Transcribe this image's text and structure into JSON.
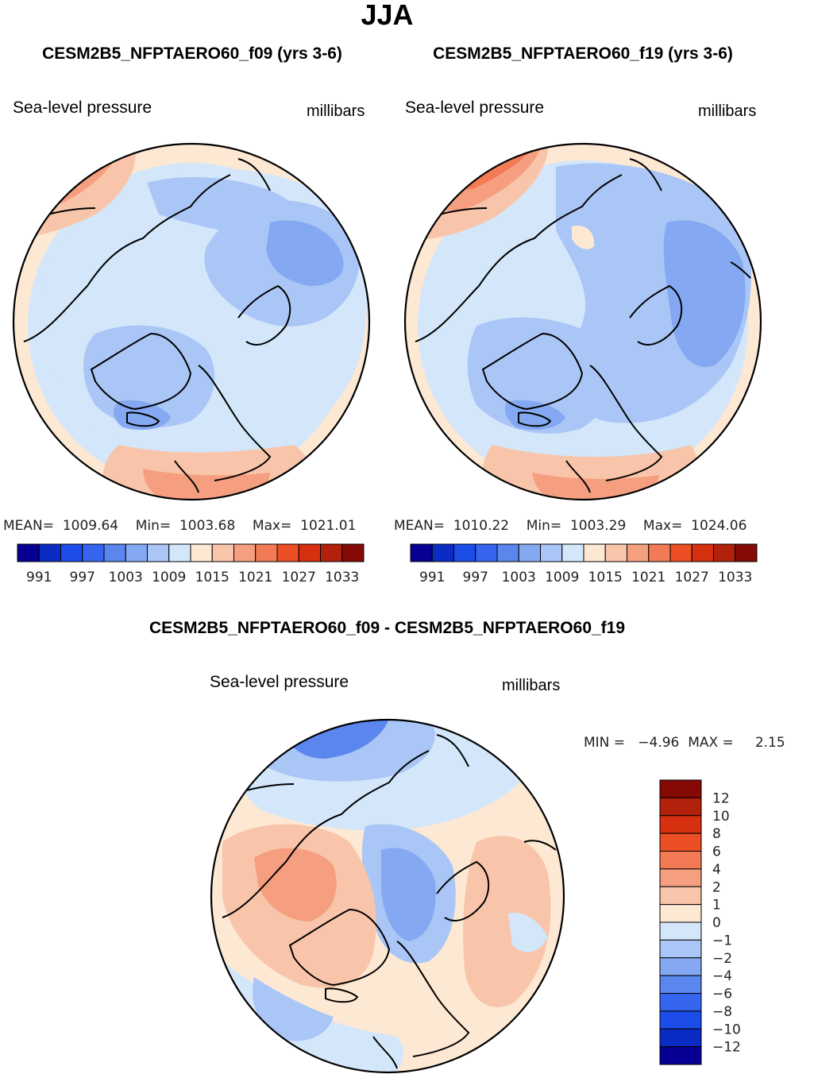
{
  "page_title": "JJA",
  "colors": {
    "ramp_abs": [
      "#080094",
      "#0b2cc4",
      "#1c4de8",
      "#3666f0",
      "#5a86ee",
      "#84a9f2",
      "#aac6f6",
      "#d3e6fa",
      "#fde8d3",
      "#f9c5aa",
      "#f59f80",
      "#f27a54",
      "#ec4f26",
      "#d63010",
      "#b2210c",
      "#850a06"
    ],
    "ramp_diff": [
      "#080094",
      "#0b2cc4",
      "#1c4de8",
      "#3666f0",
      "#5a86ee",
      "#84a9f2",
      "#aac6f6",
      "#d3e6fa",
      "#fde8d3",
      "#f9c5aa",
      "#f59f80",
      "#f27a54",
      "#ec4f26",
      "#d63010",
      "#b2210c",
      "#850a06"
    ]
  },
  "chart_data": [
    {
      "type": "heatmap",
      "projection": "north-polar-stereographic",
      "title": "CESM2B5_NFPTAERO60_f09 (yrs 3-6)",
      "left_label": "Sea-level pressure",
      "right_label": "millibars",
      "stats": {
        "mean_label": "MEAN=",
        "mean": "1009.64",
        "min_label": "Min=",
        "min": "1003.68",
        "max_label": "Max=",
        "max": "1021.01"
      },
      "colorbar": {
        "levels": [
          991,
          994,
          997,
          1000,
          1003,
          1006,
          1009,
          1012,
          1015,
          1018,
          1021,
          1024,
          1027,
          1030,
          1033
        ],
        "tick_labels": [
          "991",
          "997",
          "1003",
          "1009",
          "1015",
          "1021",
          "1027",
          "1033"
        ]
      }
    },
    {
      "type": "heatmap",
      "projection": "north-polar-stereographic",
      "title": "CESM2B5_NFPTAERO60_f19 (yrs 3-6)",
      "left_label": "Sea-level pressure",
      "right_label": "millibars",
      "stats": {
        "mean_label": "MEAN=",
        "mean": "1010.22",
        "min_label": "Min=",
        "min": "1003.29",
        "max_label": "Max=",
        "max": "1024.06"
      },
      "colorbar": {
        "levels": [
          991,
          994,
          997,
          1000,
          1003,
          1006,
          1009,
          1012,
          1015,
          1018,
          1021,
          1024,
          1027,
          1030,
          1033
        ],
        "tick_labels": [
          "991",
          "997",
          "1003",
          "1009",
          "1015",
          "1021",
          "1027",
          "1033"
        ]
      }
    },
    {
      "type": "heatmap",
      "projection": "north-polar-stereographic",
      "title": "CESM2B5_NFPTAERO60_f09 - CESM2B5_NFPTAERO60_f19",
      "left_label": "Sea-level pressure",
      "right_label": "millibars",
      "stats": {
        "min_label": "MIN =",
        "min": "−4.96",
        "max_label": "MAX =",
        "max": "2.15"
      },
      "colorbar": {
        "levels": [
          -12,
          -10,
          -8,
          -6,
          -4,
          -2,
          -1,
          0,
          1,
          2,
          4,
          6,
          8,
          10,
          12
        ],
        "tick_labels": [
          "12",
          "10",
          "8",
          "6",
          "4",
          "2",
          "1",
          "0",
          "−1",
          "−2",
          "−4",
          "−6",
          "−8",
          "−10",
          "−12"
        ]
      }
    }
  ]
}
